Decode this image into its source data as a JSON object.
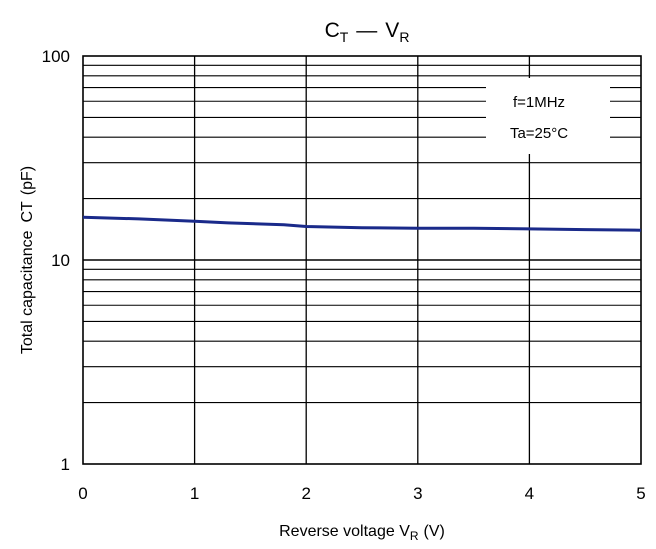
{
  "chart_data": {
    "type": "line",
    "title": {
      "main": "C",
      "main_sub": "T",
      "sep": "—",
      "second": "V",
      "second_sub": "R"
    },
    "xlabel": {
      "text": "Reverse voltage V",
      "sub": "R",
      "unit": "(V)"
    },
    "ylabel": {
      "text": "Total capacitance",
      "symbol": "CT",
      "unit": "(pF)"
    },
    "x_ticks": [
      "0",
      "1",
      "2",
      "3",
      "4",
      "5"
    ],
    "y_ticks": [
      "1",
      "10",
      "100"
    ],
    "xlim": [
      0,
      5
    ],
    "ylim": [
      1,
      100
    ],
    "y_scale": "log",
    "grid": true,
    "annotations": [
      "f=1MHz",
      "Ta=25°C"
    ],
    "line_color": "#1a2a8a",
    "series": [
      {
        "x": [
          0,
          0.5,
          1.0,
          1.3,
          1.8,
          2.0,
          2.5,
          3.0,
          3.5,
          4.0,
          4.5,
          5.0
        ],
        "y": [
          16.2,
          15.9,
          15.5,
          15.2,
          14.9,
          14.6,
          14.4,
          14.3,
          14.3,
          14.2,
          14.1,
          14.0
        ]
      }
    ]
  }
}
